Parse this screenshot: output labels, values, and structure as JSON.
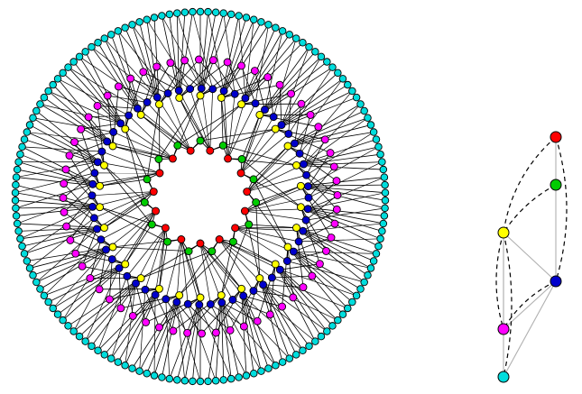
{
  "colors": {
    "background": "#ffffff",
    "edge": "#000000",
    "quotient_edge": "#b0b0b0",
    "quotient_dashed": "#000000",
    "node_stroke": "#000000"
  },
  "layers": [
    {
      "name": "red",
      "color": "#ff0000",
      "count": 15,
      "children_per_parent": 0
    },
    {
      "name": "green",
      "color": "#00cc00",
      "count": 15,
      "children_per_parent": 1
    },
    {
      "name": "yellow",
      "color": "#ffff00",
      "count": 30,
      "children_per_parent": 2
    },
    {
      "name": "blue",
      "color": "#0000cc",
      "count": 60,
      "children_per_parent": 2
    },
    {
      "name": "magenta",
      "color": "#ff00ff",
      "count": 60,
      "children_per_parent": 2
    },
    {
      "name": "cyan",
      "color": "#00dddd",
      "count": 150,
      "children_per_parent": 5
    }
  ],
  "quotient": {
    "nodes": [
      {
        "name": "red",
        "color": "#ff0000"
      },
      {
        "name": "green",
        "color": "#00cc00"
      },
      {
        "name": "yellow",
        "color": "#ffff00"
      },
      {
        "name": "blue",
        "color": "#0000cc"
      },
      {
        "name": "magenta",
        "color": "#ff00ff"
      },
      {
        "name": "cyan",
        "color": "#00dddd"
      }
    ],
    "solid_edges": [
      [
        "red",
        "green"
      ],
      [
        "green",
        "blue"
      ],
      [
        "yellow",
        "blue"
      ],
      [
        "yellow",
        "magenta"
      ],
      [
        "yellow",
        "cyan"
      ],
      [
        "blue",
        "magenta"
      ],
      [
        "blue",
        "cyan"
      ]
    ],
    "dashed_edges": [
      [
        "red",
        "yellow"
      ],
      [
        "red",
        "blue"
      ],
      [
        "green",
        "yellow"
      ],
      [
        "yellow",
        "magenta"
      ],
      [
        "yellow",
        "cyan"
      ],
      [
        "blue",
        "magenta"
      ]
    ]
  }
}
